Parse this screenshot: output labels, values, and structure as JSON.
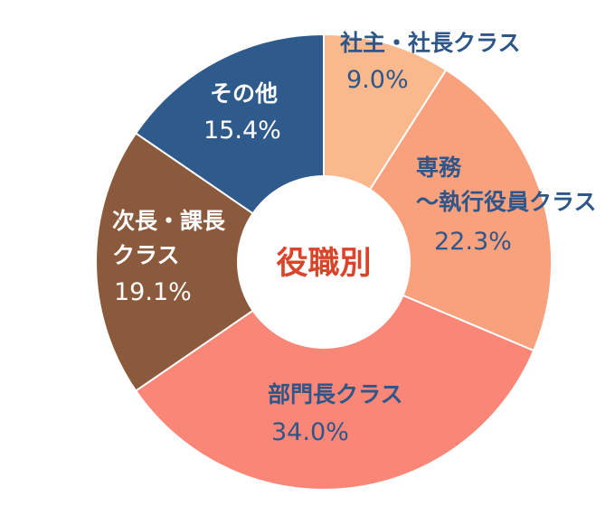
{
  "chart_data": {
    "type": "pie",
    "title": "役職別",
    "title_color": "#d9452a",
    "start_angle_deg": 0,
    "direction": "clockwise",
    "slices": [
      {
        "lines": [
          "社主・社長クラス"
        ],
        "value": 9.0,
        "value_label": "9.0%",
        "color": "#f9b98d",
        "text_color": "#2f5689"
      },
      {
        "lines": [
          "専務",
          "〜執行役員クラス"
        ],
        "value": 22.3,
        "value_label": "22.3%",
        "color": "#f9a07d",
        "text_color": "#2f5689"
      },
      {
        "lines": [
          "部門長クラス"
        ],
        "value": 34.0,
        "value_label": "34.0%",
        "color": "#fa8677",
        "text_color": "#2f5689"
      },
      {
        "lines": [
          "次長・課長",
          "クラス"
        ],
        "value": 19.1,
        "value_label": "19.1%",
        "color": "#8b5a3c",
        "text_color": "#ffffff"
      },
      {
        "lines": [
          "その他"
        ],
        "value": 15.4,
        "value_label": "15.4%",
        "color": "#2f5a8c",
        "text_color": "#ffffff"
      }
    ]
  }
}
